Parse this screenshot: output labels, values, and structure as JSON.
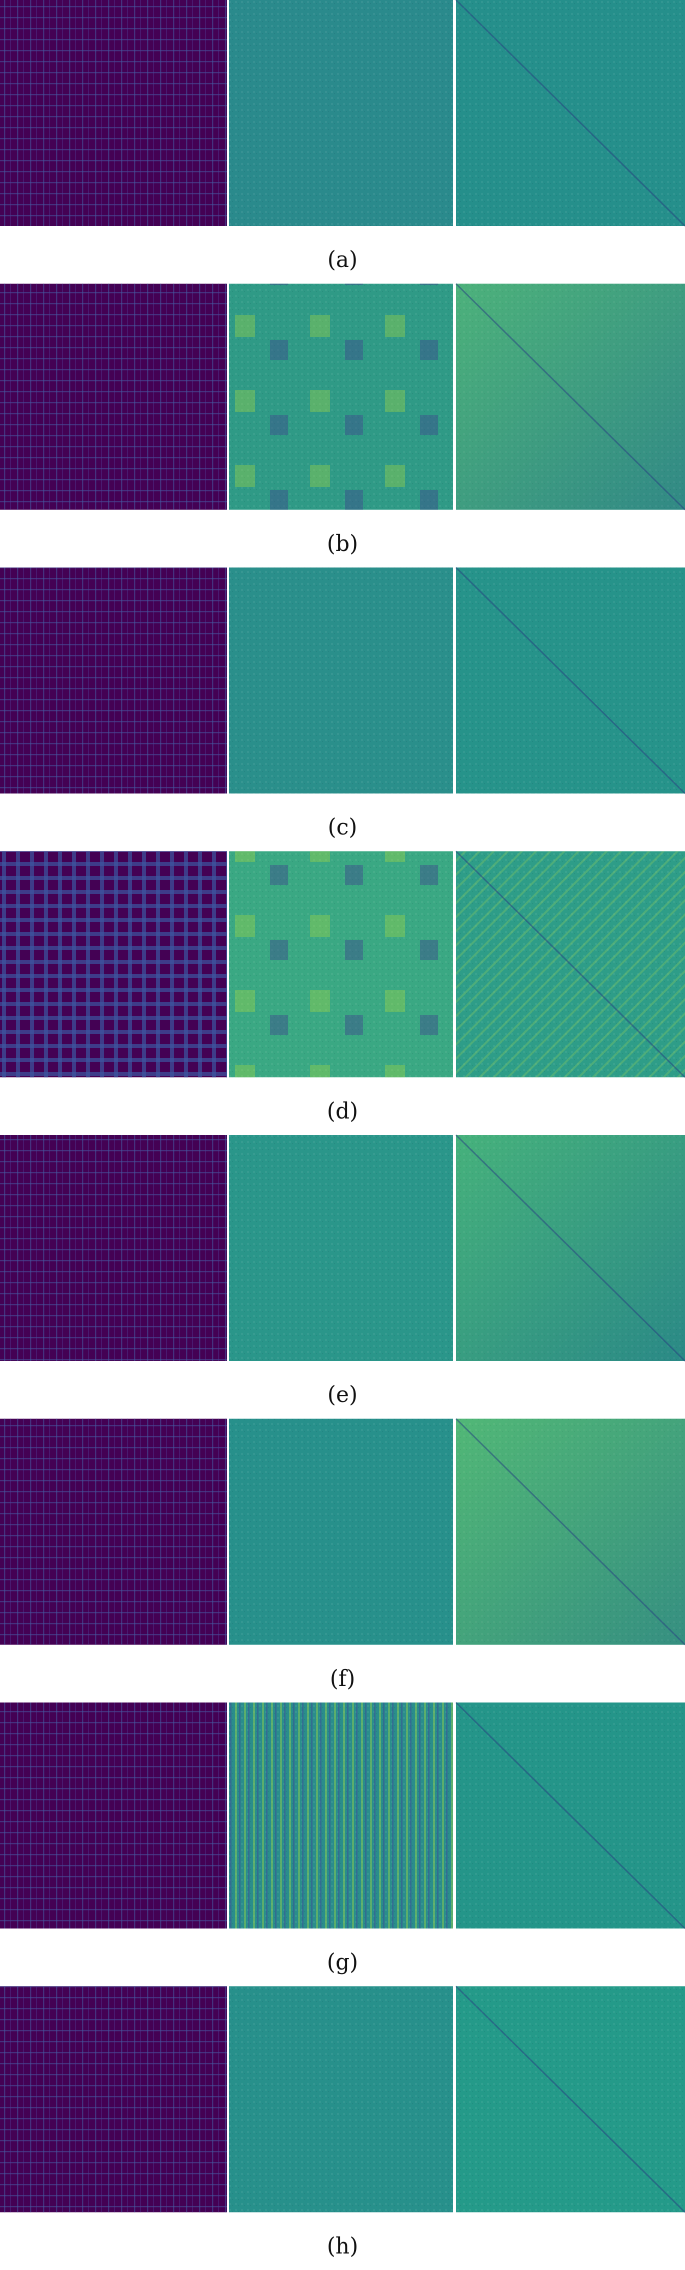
{
  "figures": [
    {
      "label": "(a)"
    },
    {
      "label": "(b)"
    },
    {
      "label": "(c)"
    },
    {
      "label": "(d)"
    },
    {
      "label": "(e)"
    },
    {
      "label": "(f)"
    },
    {
      "label": "(g)"
    },
    {
      "label": "(h)"
    }
  ]
}
